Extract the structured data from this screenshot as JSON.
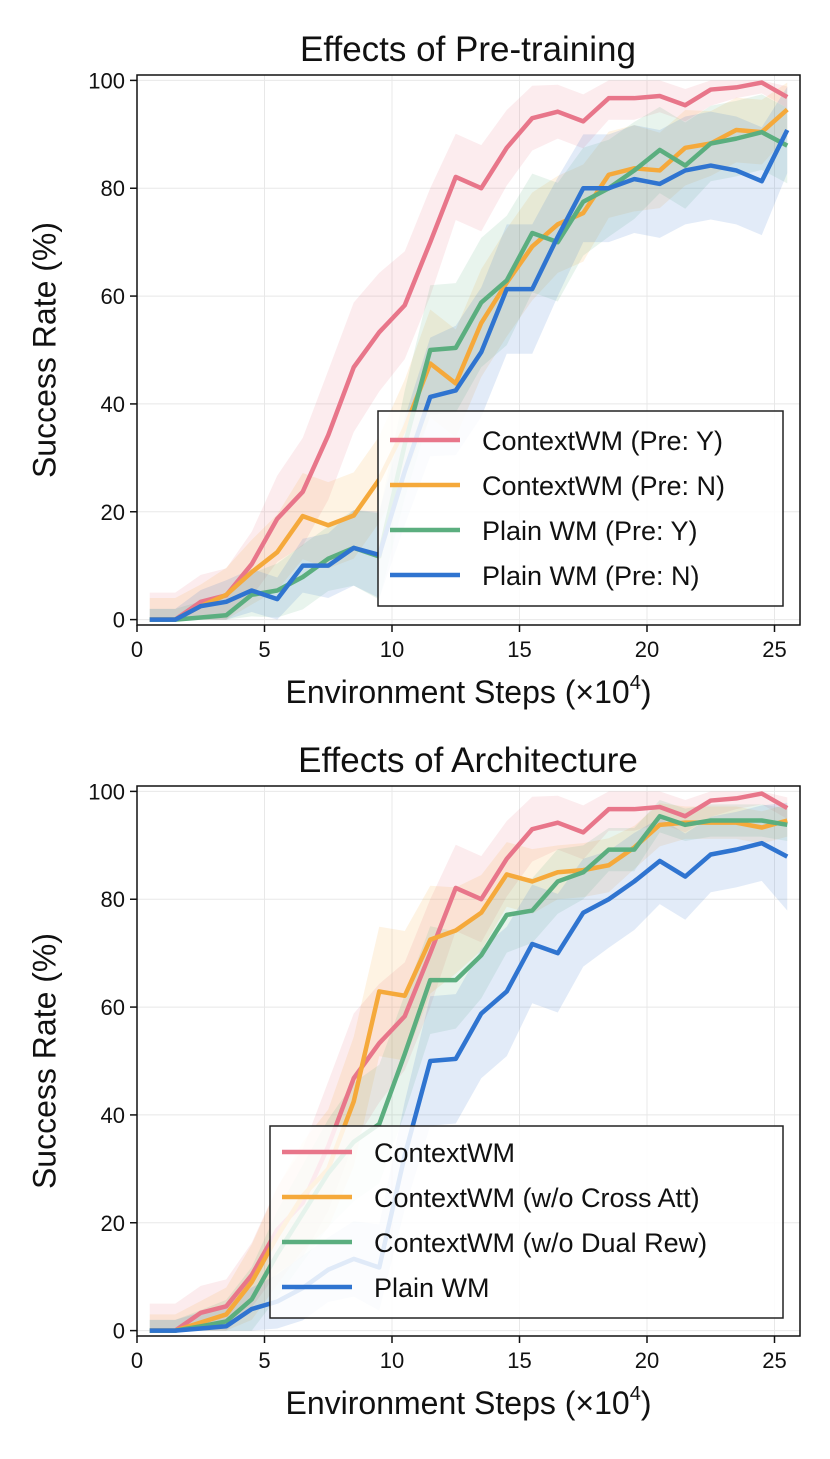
{
  "colors": {
    "pink": "#E8768A",
    "orange": "#F5A93B",
    "green": "#5BAE7F",
    "blue": "#2F74D0",
    "grid": "#e8e8e8",
    "axis": "#111111"
  },
  "chart_data": [
    {
      "type": "line",
      "title": "Effects of Pre-training",
      "xlabel": "Environment Steps (×10",
      "xlabel_exponent": "4",
      "xlabel_suffix": ")",
      "ylabel": "Success Rate (%)",
      "xlim": [
        0,
        26
      ],
      "ylim": [
        -1,
        101
      ],
      "xticks": [
        0,
        5,
        10,
        15,
        20,
        25
      ],
      "yticks": [
        0,
        20,
        40,
        60,
        80,
        100
      ],
      "grid": true,
      "legend_position": "lower-right",
      "x": [
        0.5,
        1.5,
        2.5,
        3.5,
        4.5,
        5.5,
        6.5,
        7.5,
        8.5,
        9.5,
        10.5,
        11.5,
        12.5,
        13.5,
        14.5,
        15.5,
        16.5,
        17.5,
        18.5,
        19.5,
        20.5,
        21.5,
        22.5,
        23.5,
        24.5,
        25.5
      ],
      "series": [
        {
          "name": "ContextWM (Pre: Y)",
          "color": "pink",
          "values": [
            0,
            0,
            3.3,
            4.5,
            10.3,
            18.7,
            23.7,
            34.2,
            46.8,
            53.3,
            58.3,
            70,
            82.1,
            80,
            87.5,
            93,
            94.2,
            92.4,
            96.7,
            96.7,
            97.1,
            95.4,
            98.3,
            98.7,
            99.6,
            96.9
          ],
          "band": [
            5,
            5,
            5,
            5,
            6,
            8,
            10,
            12,
            12,
            11,
            10,
            10,
            8,
            8,
            7,
            6,
            5,
            5,
            4,
            4,
            3,
            3,
            3,
            2,
            2,
            2
          ]
        },
        {
          "name": "ContextWM (Pre: N)",
          "color": "orange",
          "values": [
            0,
            0,
            2.5,
            4.6,
            8.8,
            12.5,
            19.2,
            17.5,
            19.3,
            26,
            35.5,
            47.5,
            43.8,
            55,
            62.5,
            69.2,
            73.3,
            75.4,
            82.5,
            83.7,
            83.3,
            87.5,
            88.3,
            90.8,
            90.4,
            94.6
          ],
          "band": [
            4,
            4,
            4,
            5,
            6,
            7,
            8,
            8,
            8,
            8,
            9,
            10,
            10,
            10,
            10,
            10,
            9,
            9,
            8,
            8,
            7,
            7,
            6,
            6,
            6,
            5
          ]
        },
        {
          "name": "Plain WM (Pre: Y)",
          "color": "green",
          "values": [
            0,
            0,
            0.4,
            0.8,
            4.6,
            5.4,
            7.9,
            11.3,
            13.3,
            11.7,
            32.5,
            50,
            50.4,
            58.8,
            62.9,
            71.7,
            70,
            77.5,
            80,
            83.3,
            87.1,
            84.2,
            88.3,
            89.2,
            90.4,
            87.9
          ],
          "band": [
            2,
            2,
            3,
            4,
            4,
            5,
            6,
            6,
            7,
            8,
            10,
            12,
            12,
            12,
            12,
            11,
            11,
            10,
            9,
            9,
            8,
            8,
            7,
            7,
            7,
            7
          ]
        },
        {
          "name": "Plain WM (Pre: N)",
          "color": "blue",
          "values": [
            0,
            0,
            2.5,
            3.3,
            5.4,
            3.8,
            10,
            10,
            13.3,
            12,
            27.5,
            41.3,
            42.5,
            49.6,
            61.3,
            61.3,
            71,
            80,
            80,
            81.7,
            80.8,
            83.3,
            84.2,
            83.3,
            81.3,
            90.8
          ],
          "band": [
            2,
            2,
            3,
            4,
            4,
            4,
            5,
            6,
            7,
            8,
            10,
            11,
            12,
            12,
            12,
            12,
            11,
            10,
            10,
            10,
            10,
            10,
            10,
            10,
            10,
            8
          ]
        }
      ]
    },
    {
      "type": "line",
      "title": "Effects of Architecture",
      "xlabel": "Environment Steps (×10",
      "xlabel_exponent": "4",
      "xlabel_suffix": ")",
      "ylabel": "Success Rate (%)",
      "xlim": [
        0,
        26
      ],
      "ylim": [
        -1,
        101
      ],
      "xticks": [
        0,
        5,
        10,
        15,
        20,
        25
      ],
      "yticks": [
        0,
        20,
        40,
        60,
        80,
        100
      ],
      "grid": true,
      "legend_position": "lower-right",
      "x": [
        0.5,
        1.5,
        2.5,
        3.5,
        4.5,
        5.5,
        6.5,
        7.5,
        8.5,
        9.5,
        10.5,
        11.5,
        12.5,
        13.5,
        14.5,
        15.5,
        16.5,
        17.5,
        18.5,
        19.5,
        20.5,
        21.5,
        22.5,
        23.5,
        24.5,
        25.5
      ],
      "series": [
        {
          "name": "ContextWM",
          "color": "pink",
          "values": [
            0,
            0,
            3.3,
            4.5,
            10.3,
            18.7,
            23.7,
            34.2,
            46.8,
            53.3,
            58.3,
            70,
            82.1,
            80,
            87.5,
            93,
            94.2,
            92.4,
            96.7,
            96.7,
            97.1,
            95.4,
            98.3,
            98.7,
            99.6,
            96.9
          ],
          "band": [
            5,
            5,
            5,
            5,
            6,
            8,
            10,
            12,
            12,
            11,
            10,
            10,
            8,
            8,
            7,
            6,
            5,
            5,
            4,
            4,
            3,
            3,
            3,
            2,
            2,
            2
          ]
        },
        {
          "name": "ContextWM (w/o Cross Att)",
          "color": "orange",
          "values": [
            0,
            0,
            1.5,
            3,
            9,
            17.5,
            25,
            30,
            42.5,
            62.9,
            62.1,
            72.5,
            74.2,
            77.5,
            84.6,
            83.3,
            85,
            85.4,
            86.3,
            89.6,
            93.8,
            94.2,
            94.2,
            94.2,
            93.3,
            94.6
          ],
          "band": [
            3,
            3,
            4,
            5,
            7,
            9,
            10,
            11,
            12,
            12,
            12,
            10,
            8,
            7,
            6,
            6,
            5,
            5,
            5,
            4,
            4,
            3,
            3,
            3,
            3,
            3
          ]
        },
        {
          "name": "ContextWM (w/o Dual Rew)",
          "color": "green",
          "values": [
            0,
            0,
            0.8,
            1.7,
            5.8,
            14.2,
            21.7,
            29.2,
            35,
            38.3,
            51.3,
            65,
            65,
            69.6,
            77.1,
            77.9,
            83.3,
            85,
            89.2,
            89.2,
            95.4,
            93.8,
            94.6,
            94.6,
            94.6,
            93.8
          ],
          "band": [
            2,
            2,
            3,
            4,
            6,
            8,
            9,
            10,
            11,
            11,
            11,
            10,
            9,
            8,
            7,
            6,
            6,
            5,
            4,
            4,
            3,
            3,
            3,
            3,
            3,
            3
          ]
        },
        {
          "name": "Plain WM",
          "color": "blue",
          "values": [
            0,
            0,
            0.4,
            0.8,
            4,
            5.4,
            7.9,
            11.3,
            13.3,
            11.7,
            32.5,
            50,
            50.4,
            58.8,
            62.9,
            71.7,
            70,
            77.5,
            80,
            83.3,
            87.1,
            84.2,
            88.3,
            89.2,
            90.4,
            87.9
          ],
          "band": [
            2,
            2,
            3,
            4,
            4,
            5,
            6,
            6,
            7,
            8,
            10,
            12,
            12,
            12,
            12,
            11,
            11,
            10,
            9,
            9,
            8,
            8,
            7,
            7,
            7,
            10
          ]
        }
      ]
    }
  ]
}
